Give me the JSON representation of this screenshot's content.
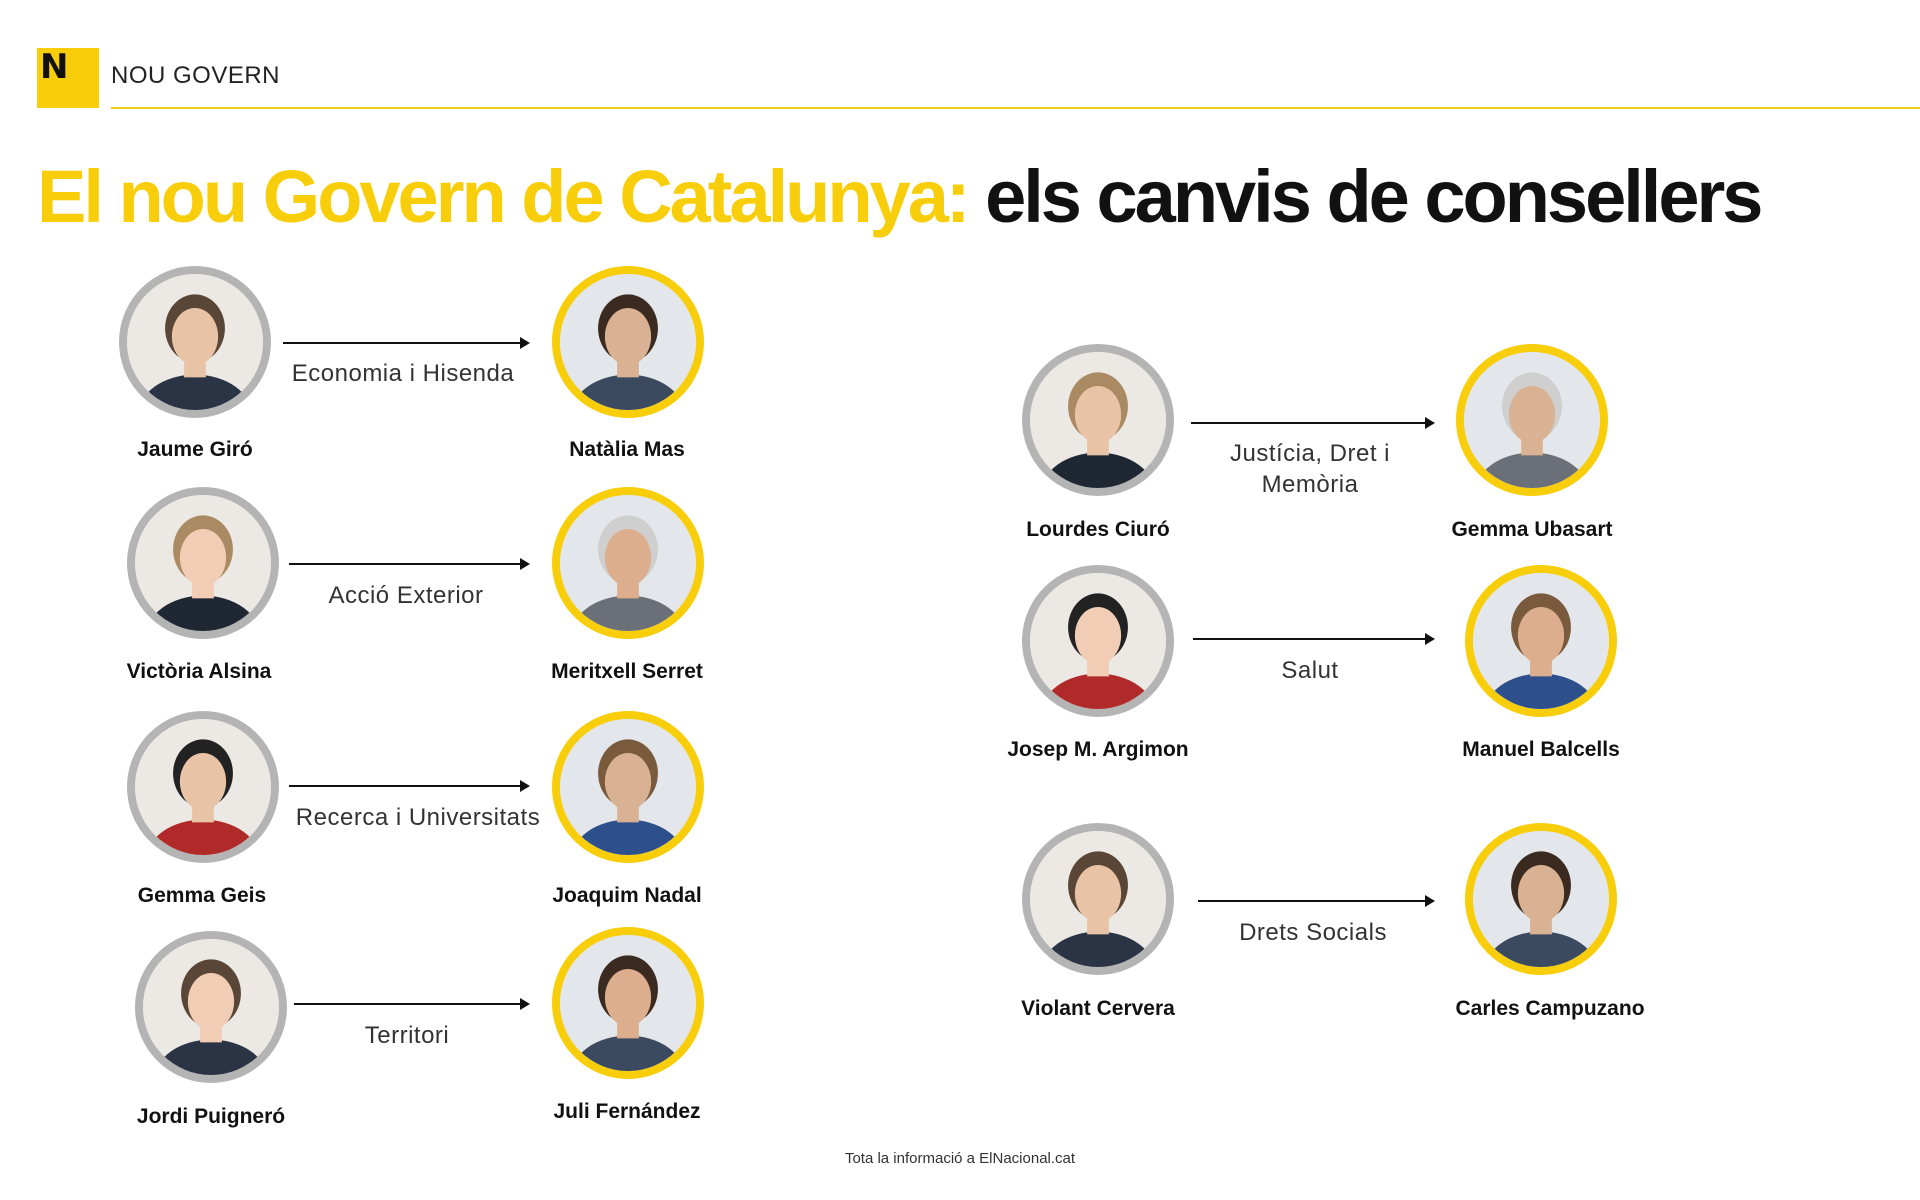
{
  "header": {
    "logo_letter": "N",
    "section": "NOU GOVERN",
    "accent_color": "#f8cd0a"
  },
  "title": {
    "highlight": "El nou Govern de Catalunya:",
    "rest": " els canvis de consellers"
  },
  "changes": [
    {
      "department": "Economia i Hisenda",
      "outgoing": "Jaume Giró",
      "incoming": "Natàlia Mas"
    },
    {
      "department": "Acció Exterior",
      "outgoing": "Victòria Alsina",
      "incoming": "Meritxell Serret"
    },
    {
      "department": "Recerca i Universitats",
      "outgoing": "Gemma Geis",
      "incoming": "Joaquim Nadal"
    },
    {
      "department": "Territori",
      "outgoing": "Jordi Puigneró",
      "incoming": "Juli Fernández"
    },
    {
      "department": "Justícia, Dret i Memòria",
      "outgoing": "Lourdes Ciuró",
      "incoming": "Gemma Ubasart"
    },
    {
      "department": "Salut",
      "outgoing": "Josep M. Argimon",
      "incoming": "Manuel Balcells"
    },
    {
      "department": "Drets Socials",
      "outgoing": "Violant Cervera",
      "incoming": "Carles Campuzano"
    }
  ],
  "footer": "Tota la informació a ElNacional.cat",
  "colors": {
    "outgoing_ring": "#b4b4b4",
    "incoming_ring": "#f8cd0a"
  }
}
